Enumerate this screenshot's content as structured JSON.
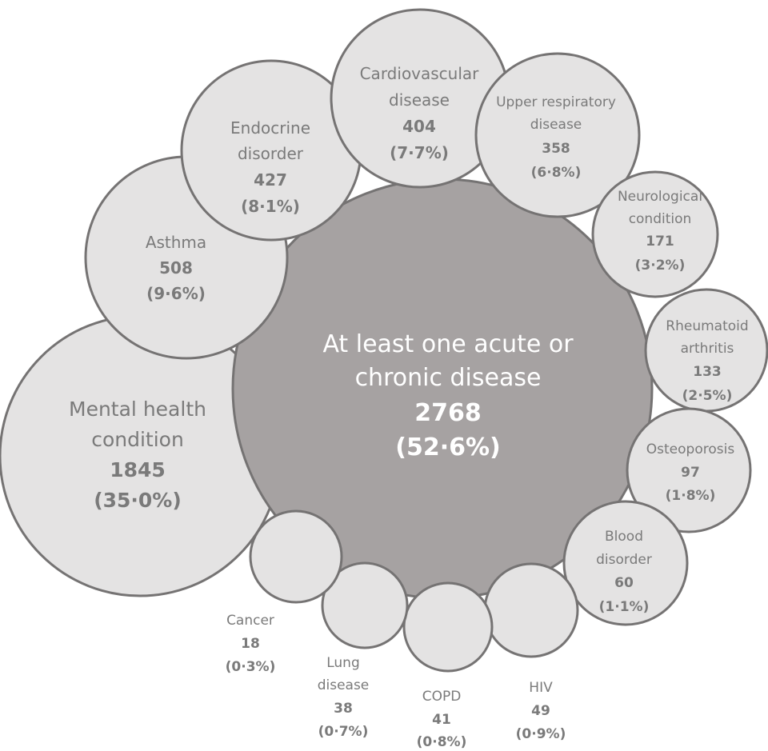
{
  "colors": {
    "center_fill": "#a6a2a2",
    "bubble_fill": "#e4e3e3",
    "stroke": "#757373",
    "text": "#7a7a7a",
    "center_text": "#ffffff"
  },
  "center": {
    "line1": "At least one acute or",
    "line2": "chronic disease",
    "count": "2768",
    "pct": "(52·6%)"
  },
  "bubbles": {
    "mental_health": {
      "line1": "Mental health",
      "line2": "condition",
      "count": "1845",
      "pct": "(35·0%)"
    },
    "asthma": {
      "line1": "Asthma",
      "count": "508",
      "pct": "(9·6%)"
    },
    "endocrine": {
      "line1": "Endocrine",
      "line2": "disorder",
      "count": "427",
      "pct": "(8·1%)"
    },
    "cardiovascular": {
      "line1": "Cardiovascular",
      "line2": "disease",
      "count": "404",
      "pct": "(7·7%)"
    },
    "upper_respiratory": {
      "line1": "Upper respiratory",
      "line2": "disease",
      "count": "358",
      "pct": "(6·8%)"
    },
    "neurological": {
      "line1": "Neurological",
      "line2": "condition",
      "count": "171",
      "pct": "(3·2%)"
    },
    "rheumatoid": {
      "line1": "Rheumatoid",
      "line2": "arthritis",
      "count": "133",
      "pct": "(2·5%)"
    },
    "osteoporosis": {
      "line1": "Osteoporosis",
      "count": "97",
      "pct": "(1·8%)"
    },
    "blood_disorder": {
      "line1": "Blood",
      "line2": "disorder",
      "count": "60",
      "pct": "(1·1%)"
    },
    "hiv": {
      "line1": "HIV",
      "count": "49",
      "pct": "(0·9%)"
    },
    "copd": {
      "line1": "COPD",
      "count": "41",
      "pct": "(0·8%)"
    },
    "lung_disease": {
      "line1": "Lung",
      "line2": "disease",
      "count": "38",
      "pct": "(0·7%)"
    },
    "cancer": {
      "line1": "Cancer",
      "count": "18",
      "pct": "(0·3%)"
    }
  }
}
